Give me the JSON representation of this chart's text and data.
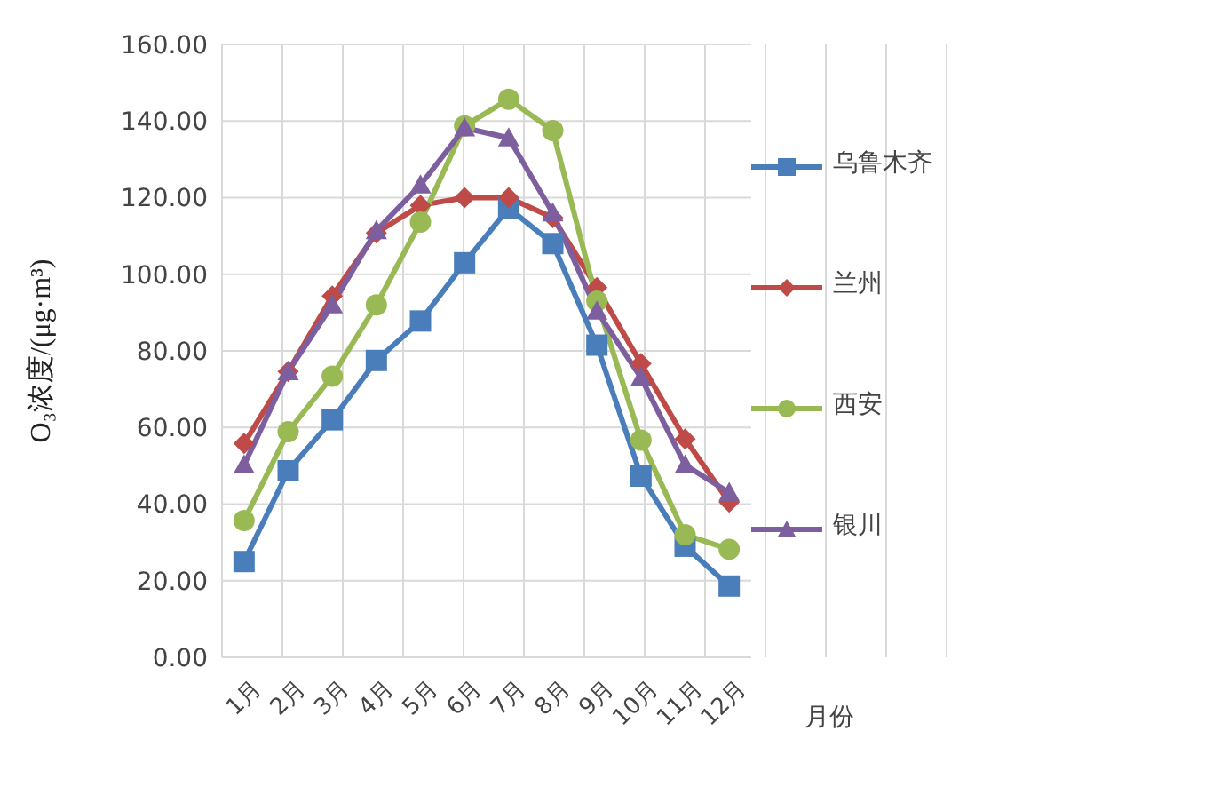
{
  "chart_data": {
    "type": "line",
    "ylabel": "O₃浓度/(μg·m³)",
    "xlabel": "月份",
    "categories": [
      "1月",
      "2月",
      "3月",
      "4月",
      "5月",
      "6月",
      "7月",
      "8月",
      "9月",
      "10月",
      "11月",
      "12月"
    ],
    "ylim": [
      0,
      160
    ],
    "yticks": [
      {
        "value": 0,
        "label": "0.00"
      },
      {
        "value": 20,
        "label": "20.00"
      },
      {
        "value": 40,
        "label": "40.00"
      },
      {
        "value": 60,
        "label": "60.00"
      },
      {
        "value": 80,
        "label": "80.00"
      },
      {
        "value": 100,
        "label": "100.00"
      },
      {
        "value": 120,
        "label": "120.00"
      },
      {
        "value": 140,
        "label": "140.00"
      },
      {
        "value": 160,
        "label": "160.00"
      }
    ],
    "grid": true,
    "legend": "right",
    "line_style": "solid",
    "series": [
      {
        "name": "乌鲁木齐",
        "color": "#4a7ebb",
        "marker": "square",
        "values": [
          25,
          48.7,
          62,
          77.5,
          87.8,
          103,
          117.3,
          108,
          81.5,
          47.3,
          29,
          18.6
        ]
      },
      {
        "name": "兰州",
        "color": "#be4b48",
        "marker": "diamond",
        "values": [
          55.8,
          74.6,
          94.3,
          110.8,
          118,
          120,
          120,
          114.8,
          96.5,
          76.7,
          57,
          40.5
        ]
      },
      {
        "name": "西安",
        "color": "#98b954",
        "marker": "circle",
        "values": [
          35.7,
          58.9,
          73.4,
          92,
          113.6,
          138.7,
          145.7,
          137.5,
          93,
          56.7,
          32,
          28.2
        ]
      },
      {
        "name": "银川",
        "color": "#7d5fa0",
        "marker": "triangle",
        "values": [
          50.2,
          74.6,
          92,
          111.4,
          123.3,
          138.2,
          135.6,
          116,
          90.4,
          73,
          50.2,
          43
        ]
      }
    ]
  }
}
